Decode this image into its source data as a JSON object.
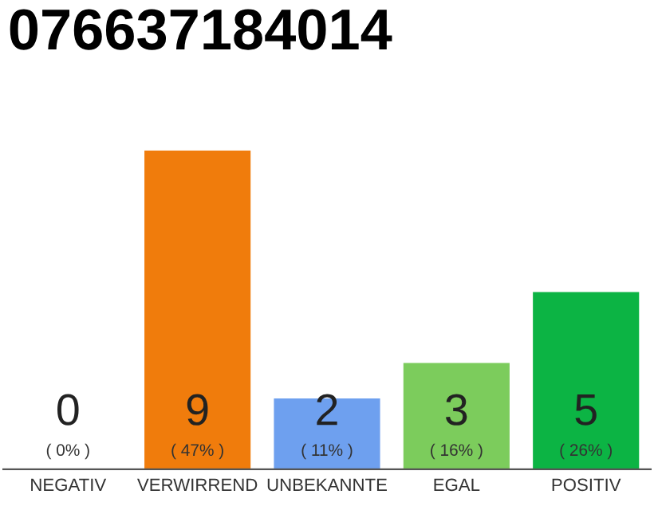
{
  "chart_data": {
    "type": "bar",
    "title": "076637184014",
    "categories": [
      "NEGATIV",
      "VERWIRREND",
      "UNBEKANNTE",
      "EGAL",
      "POSITIV"
    ],
    "values": [
      0,
      9,
      2,
      3,
      5
    ],
    "colors": [
      "#999999",
      "#f07c0c",
      "#6ea0ef",
      "#7ccc5c",
      "#0cb444"
    ],
    "value_labels": [
      "0\n( 0% )",
      "9\n( 47% )",
      "2\n( 11% )",
      "3\n( 16% )",
      "5\n( 26% )"
    ],
    "tick_labels": "x",
    "grid": false,
    "legend": false
  }
}
